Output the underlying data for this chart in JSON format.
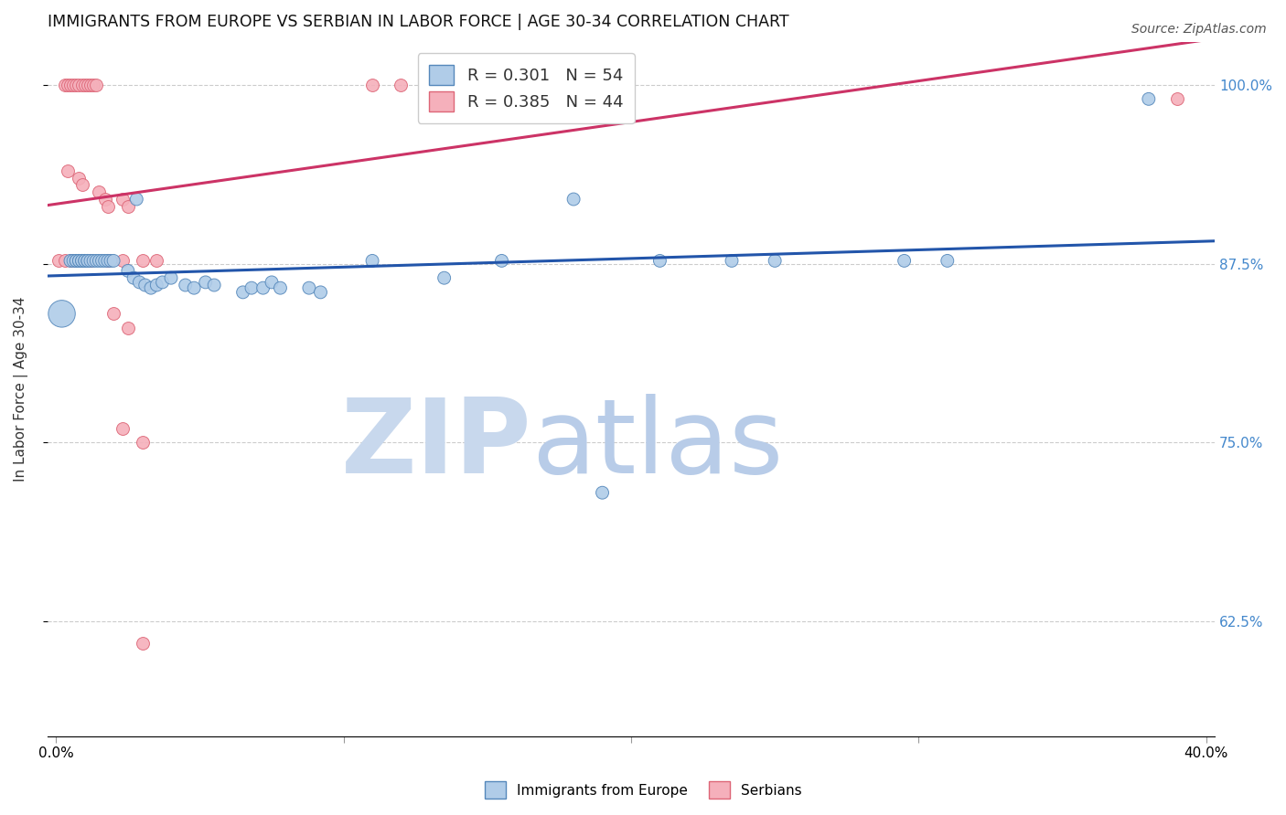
{
  "title": "IMMIGRANTS FROM EUROPE VS SERBIAN IN LABOR FORCE | AGE 30-34 CORRELATION CHART",
  "source": "Source: ZipAtlas.com",
  "ylabel": "In Labor Force | Age 30-34",
  "y_ticks": [
    0.625,
    0.75,
    0.875,
    1.0
  ],
  "y_tick_labels": [
    "62.5%",
    "75.0%",
    "87.5%",
    "100.0%"
  ],
  "x_min": -0.003,
  "x_max": 0.403,
  "y_min": 0.545,
  "y_max": 1.03,
  "blue_R": 0.301,
  "blue_N": 54,
  "pink_R": 0.385,
  "pink_N": 44,
  "blue_fill": "#b0cce8",
  "pink_fill": "#f5b0bb",
  "blue_edge": "#5588bb",
  "pink_edge": "#dd6677",
  "blue_line": "#2255aa",
  "pink_line": "#cc3366",
  "legend_label_blue": "Immigrants from Europe",
  "legend_label_pink": "Serbians",
  "watermark_color_zip": "#c5d8ef",
  "watermark_color_atlas": "#b8cce8",
  "x_tick_positions": [
    0.0,
    0.1,
    0.2,
    0.3,
    0.4
  ],
  "x_tick_labels": [
    "0.0%",
    "",
    "",
    "",
    "40.0%"
  ],
  "background_color": "#ffffff",
  "grid_color": "#cccccc",
  "right_axis_color": "#4488cc",
  "title_fontsize": 12.5,
  "source_fontsize": 10,
  "blue_dots_x": [
    0.001,
    0.003,
    0.004,
    0.005,
    0.006,
    0.007,
    0.0075,
    0.008,
    0.009,
    0.0095,
    0.01,
    0.011,
    0.012,
    0.013,
    0.014,
    0.015,
    0.016,
    0.017,
    0.018,
    0.019,
    0.02,
    0.021,
    0.022,
    0.023,
    0.025,
    0.026,
    0.027,
    0.028,
    0.029,
    0.03,
    0.033,
    0.035,
    0.038,
    0.04,
    0.05,
    0.055,
    0.06,
    0.065,
    0.07,
    0.075,
    0.08,
    0.09,
    0.095,
    0.11,
    0.14,
    0.155,
    0.18,
    0.21,
    0.235,
    0.25,
    0.27,
    0.31,
    0.38
  ],
  "blue_dots_y": [
    0.868,
    0.876,
    0.877,
    0.876,
    0.877,
    0.877,
    0.876,
    0.877,
    0.877,
    0.877,
    0.877,
    0.877,
    0.877,
    0.877,
    0.877,
    0.877,
    0.877,
    0.877,
    0.877,
    0.877,
    0.877,
    0.877,
    0.877,
    0.877,
    0.877,
    0.877,
    0.877,
    0.877,
    0.877,
    0.877,
    0.877,
    0.877,
    0.877,
    0.877,
    0.877,
    0.877,
    0.877,
    0.877,
    0.877,
    0.877,
    0.877,
    0.856,
    0.877,
    0.877,
    0.86,
    0.877,
    0.92,
    0.877,
    0.877,
    0.877,
    0.877,
    0.877,
    0.99
  ],
  "blue_dots_size": [
    500,
    120,
    120,
    120,
    120,
    120,
    120,
    120,
    120,
    120,
    120,
    120,
    120,
    120,
    120,
    120,
    120,
    120,
    120,
    120,
    120,
    120,
    120,
    120,
    120,
    120,
    120,
    120,
    120,
    120,
    120,
    120,
    120,
    120,
    120,
    120,
    120,
    120,
    120,
    120,
    120,
    120,
    120,
    120,
    120,
    120,
    120,
    120,
    120,
    120,
    120,
    120,
    120
  ],
  "blue_dots_lowx": [
    0.001
  ],
  "blue_dots_lowy": [
    0.84
  ],
  "pink_dots_x": [
    0.001,
    0.002,
    0.003,
    0.004,
    0.005,
    0.006,
    0.007,
    0.008,
    0.009,
    0.01,
    0.011,
    0.012,
    0.013,
    0.014,
    0.015,
    0.016,
    0.017,
    0.018,
    0.02,
    0.022,
    0.024,
    0.026,
    0.028,
    0.03,
    0.033,
    0.036,
    0.04,
    0.003,
    0.005,
    0.007,
    0.009,
    0.012,
    0.025,
    0.038,
    0.11,
    0.13,
    0.02,
    0.028,
    0.04,
    0.15,
    0.2,
    0.25,
    0.3,
    0.39
  ],
  "pink_dots_y": [
    0.877,
    0.877,
    0.877,
    0.877,
    0.877,
    0.877,
    0.877,
    0.877,
    0.877,
    0.877,
    0.877,
    0.877,
    0.877,
    0.877,
    0.877,
    0.877,
    0.877,
    0.877,
    0.877,
    0.877,
    0.877,
    0.877,
    0.877,
    0.877,
    0.877,
    0.877,
    0.877,
    1.0,
    1.0,
    1.0,
    1.0,
    1.0,
    1.0,
    1.0,
    1.0,
    1.0,
    0.763,
    0.75,
    0.877,
    0.877,
    0.877,
    0.877,
    0.877,
    0.99
  ]
}
